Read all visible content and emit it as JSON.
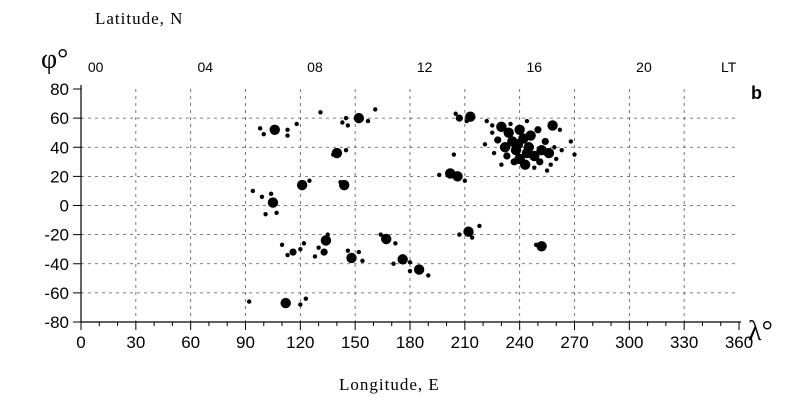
{
  "chart_data": {
    "type": "scatter",
    "title": "",
    "panel_label": "b",
    "xlabel": "Longitude, E",
    "ylabel": "Latitude, N",
    "x_axis_symbol": "λ°",
    "y_axis_symbol": "φ°",
    "top_axis_unit": "LT",
    "xlim": [
      0,
      360
    ],
    "ylim": [
      -80,
      80
    ],
    "x_ticks": [
      "0",
      "30",
      "60",
      "90",
      "120",
      "150",
      "180",
      "210",
      "240",
      "270",
      "300",
      "330",
      "360"
    ],
    "y_ticks": [
      "80",
      "60",
      "40",
      "20",
      "0",
      "-20",
      "-40",
      "-60",
      "-80"
    ],
    "top_ticks": [
      {
        "label": "00",
        "lon": 8
      },
      {
        "label": "04",
        "lon": 68
      },
      {
        "label": "08",
        "lon": 128
      },
      {
        "label": "12",
        "lon": 188
      },
      {
        "label": "16",
        "lon": 248
      },
      {
        "label": "20",
        "lon": 308
      }
    ],
    "grid": true,
    "points": [
      {
        "x": 98,
        "y": 53,
        "s": 1
      },
      {
        "x": 100,
        "y": 49,
        "s": 1
      },
      {
        "x": 106,
        "y": 52,
        "s": 3
      },
      {
        "x": 113,
        "y": 52,
        "s": 1
      },
      {
        "x": 113,
        "y": 48,
        "s": 1
      },
      {
        "x": 118,
        "y": 56,
        "s": 1
      },
      {
        "x": 131,
        "y": 64,
        "s": 1
      },
      {
        "x": 143,
        "y": 57,
        "s": 1
      },
      {
        "x": 145,
        "y": 60,
        "s": 1
      },
      {
        "x": 146,
        "y": 55,
        "s": 1
      },
      {
        "x": 152,
        "y": 60,
        "s": 3
      },
      {
        "x": 157,
        "y": 58,
        "s": 1
      },
      {
        "x": 161,
        "y": 66,
        "s": 1
      },
      {
        "x": 140,
        "y": 36,
        "s": 3
      },
      {
        "x": 145,
        "y": 38,
        "s": 1
      },
      {
        "x": 138,
        "y": 35,
        "s": 1
      },
      {
        "x": 94,
        "y": 10,
        "s": 1
      },
      {
        "x": 99,
        "y": 6,
        "s": 1
      },
      {
        "x": 104,
        "y": 8,
        "s": 1
      },
      {
        "x": 105,
        "y": 2,
        "s": 3
      },
      {
        "x": 107,
        "y": -5,
        "s": 1
      },
      {
        "x": 101,
        "y": -6,
        "s": 1
      },
      {
        "x": 121,
        "y": 14,
        "s": 3
      },
      {
        "x": 125,
        "y": 17,
        "s": 1
      },
      {
        "x": 144,
        "y": 14,
        "s": 3
      },
      {
        "x": 142,
        "y": 16,
        "s": 1
      },
      {
        "x": 110,
        "y": -27,
        "s": 1
      },
      {
        "x": 116,
        "y": -32,
        "s": 2
      },
      {
        "x": 120,
        "y": -30,
        "s": 1
      },
      {
        "x": 113,
        "y": -34,
        "s": 1
      },
      {
        "x": 122,
        "y": -26,
        "s": 1
      },
      {
        "x": 130,
        "y": -29,
        "s": 1
      },
      {
        "x": 134,
        "y": -24,
        "s": 3
      },
      {
        "x": 133,
        "y": -32,
        "s": 2
      },
      {
        "x": 128,
        "y": -35,
        "s": 1
      },
      {
        "x": 135,
        "y": -20,
        "s": 1
      },
      {
        "x": 146,
        "y": -31,
        "s": 1
      },
      {
        "x": 148,
        "y": -36,
        "s": 3
      },
      {
        "x": 154,
        "y": -38,
        "s": 1
      },
      {
        "x": 152,
        "y": -32,
        "s": 1
      },
      {
        "x": 164,
        "y": -20,
        "s": 1
      },
      {
        "x": 167,
        "y": -23,
        "s": 3
      },
      {
        "x": 172,
        "y": -26,
        "s": 1
      },
      {
        "x": 176,
        "y": -37,
        "s": 3
      },
      {
        "x": 171,
        "y": -40,
        "s": 1
      },
      {
        "x": 180,
        "y": -39,
        "s": 1
      },
      {
        "x": 185,
        "y": -44,
        "s": 3
      },
      {
        "x": 190,
        "y": -48,
        "s": 1
      },
      {
        "x": 180,
        "y": -45,
        "s": 1
      },
      {
        "x": 92,
        "y": -66,
        "s": 1
      },
      {
        "x": 112,
        "y": -67,
        "s": 3
      },
      {
        "x": 120,
        "y": -68,
        "s": 1
      },
      {
        "x": 123,
        "y": -64,
        "s": 1
      },
      {
        "x": 202,
        "y": 22,
        "s": 3
      },
      {
        "x": 206,
        "y": 20,
        "s": 3
      },
      {
        "x": 210,
        "y": 17,
        "s": 1
      },
      {
        "x": 196,
        "y": 21,
        "s": 1
      },
      {
        "x": 204,
        "y": 35,
        "s": 1
      },
      {
        "x": 205,
        "y": 63,
        "s": 1
      },
      {
        "x": 207,
        "y": 60,
        "s": 2
      },
      {
        "x": 213,
        "y": 61,
        "s": 3
      },
      {
        "x": 211,
        "y": 58,
        "s": 1
      },
      {
        "x": 222,
        "y": 58,
        "s": 1
      },
      {
        "x": 225,
        "y": 55,
        "s": 1
      },
      {
        "x": 207,
        "y": -20,
        "s": 1
      },
      {
        "x": 212,
        "y": -18,
        "s": 3
      },
      {
        "x": 218,
        "y": -14,
        "s": 1
      },
      {
        "x": 214,
        "y": -22,
        "s": 1
      },
      {
        "x": 252,
        "y": -28,
        "s": 3
      },
      {
        "x": 249,
        "y": -27,
        "s": 1
      },
      {
        "x": 230,
        "y": 54,
        "s": 3
      },
      {
        "x": 234,
        "y": 50,
        "s": 3
      },
      {
        "x": 240,
        "y": 52,
        "s": 3
      },
      {
        "x": 236,
        "y": 44,
        "s": 3
      },
      {
        "x": 242,
        "y": 46,
        "s": 3
      },
      {
        "x": 238,
        "y": 38,
        "s": 3
      },
      {
        "x": 245,
        "y": 40,
        "s": 3
      },
      {
        "x": 240,
        "y": 32,
        "s": 3
      },
      {
        "x": 248,
        "y": 34,
        "s": 3
      },
      {
        "x": 252,
        "y": 38,
        "s": 3
      },
      {
        "x": 246,
        "y": 48,
        "s": 3
      },
      {
        "x": 250,
        "y": 52,
        "s": 2
      },
      {
        "x": 232,
        "y": 40,
        "s": 3
      },
      {
        "x": 228,
        "y": 45,
        "s": 2
      },
      {
        "x": 233,
        "y": 34,
        "s": 2
      },
      {
        "x": 243,
        "y": 28,
        "s": 3
      },
      {
        "x": 237,
        "y": 30,
        "s": 2
      },
      {
        "x": 230,
        "y": 28,
        "s": 1
      },
      {
        "x": 226,
        "y": 36,
        "s": 1
      },
      {
        "x": 254,
        "y": 44,
        "s": 2
      },
      {
        "x": 256,
        "y": 36,
        "s": 3
      },
      {
        "x": 259,
        "y": 40,
        "s": 1
      },
      {
        "x": 260,
        "y": 32,
        "s": 1
      },
      {
        "x": 258,
        "y": 55,
        "s": 3
      },
      {
        "x": 262,
        "y": 52,
        "s": 1
      },
      {
        "x": 255,
        "y": 24,
        "s": 1
      },
      {
        "x": 268,
        "y": 44,
        "s": 1
      },
      {
        "x": 270,
        "y": 35,
        "s": 1
      },
      {
        "x": 248,
        "y": 26,
        "s": 1
      },
      {
        "x": 244,
        "y": 36,
        "s": 3
      },
      {
        "x": 239,
        "y": 42,
        "s": 3
      },
      {
        "x": 235,
        "y": 56,
        "s": 1
      },
      {
        "x": 244,
        "y": 58,
        "s": 1
      },
      {
        "x": 225,
        "y": 50,
        "s": 1
      },
      {
        "x": 221,
        "y": 42,
        "s": 1
      },
      {
        "x": 251,
        "y": 30,
        "s": 2
      },
      {
        "x": 257,
        "y": 28,
        "s": 1
      },
      {
        "x": 263,
        "y": 38,
        "s": 1
      }
    ]
  }
}
